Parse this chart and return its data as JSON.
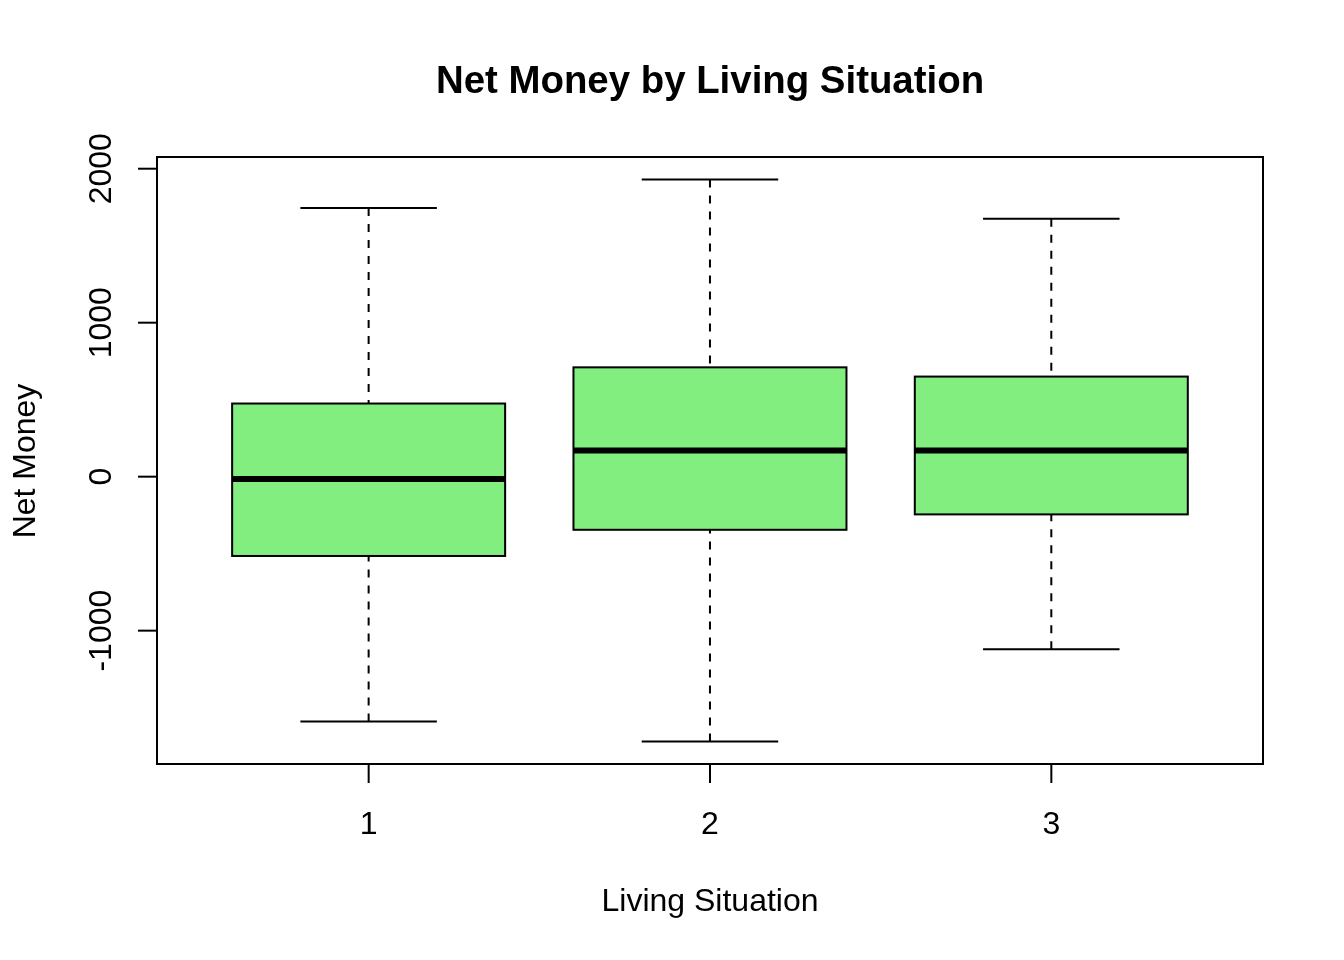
{
  "chart_data": {
    "type": "box",
    "title": "Net Money by Living Situation",
    "xlabel": "Living Situation",
    "ylabel": "Net Money",
    "categories": [
      "1",
      "2",
      "3"
    ],
    "boxes": [
      {
        "low": -1590,
        "q1": -515,
        "median": -15,
        "q3": 475,
        "high": 1745
      },
      {
        "low": -1720,
        "q1": -345,
        "median": 170,
        "q3": 710,
        "high": 1930
      },
      {
        "low": -1120,
        "q1": -245,
        "median": 170,
        "q3": 650,
        "high": 1675
      }
    ],
    "color": "#83ee80",
    "ylim": [
      -1866,
      2076
    ],
    "yticks": [
      -1000,
      0,
      1000,
      2000
    ]
  }
}
